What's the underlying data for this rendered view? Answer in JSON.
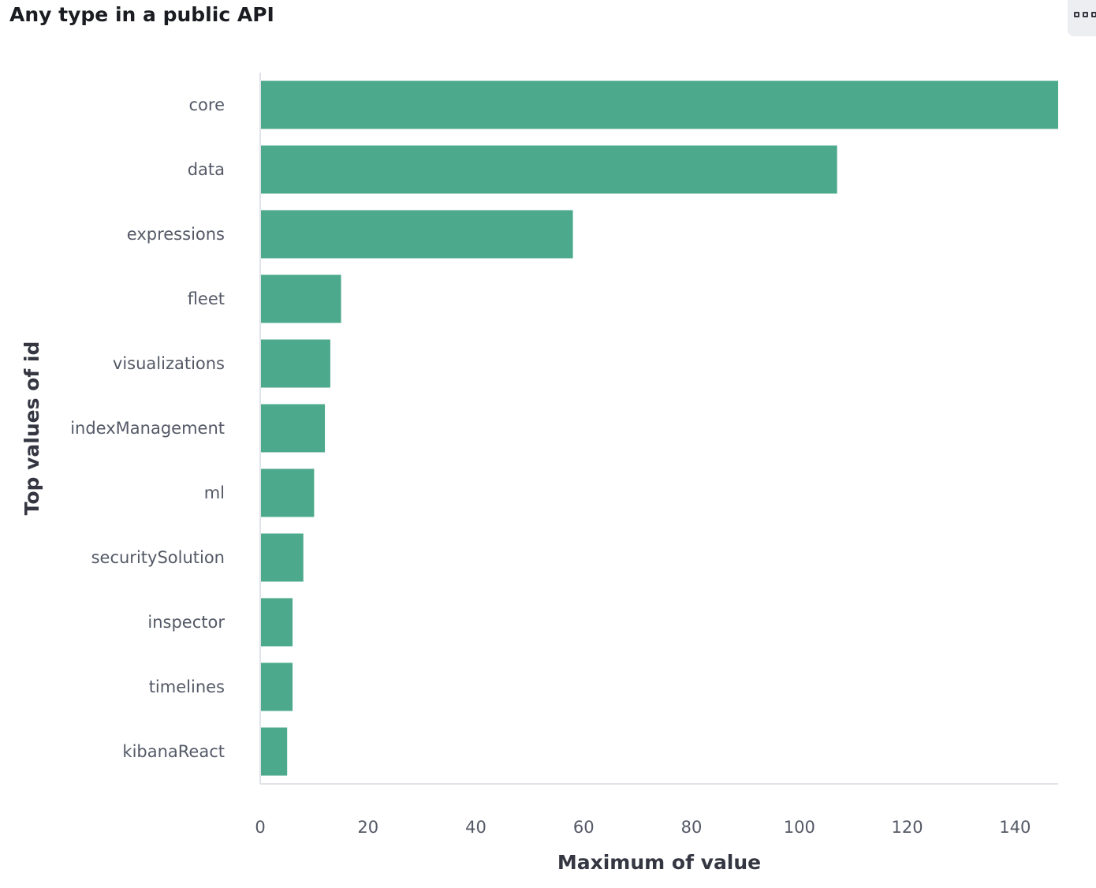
{
  "panel": {
    "title": "Any type in a public API",
    "menu_icon": "panel-options-icon"
  },
  "colors": {
    "bar": "#4ca98c",
    "axis": "#e0e3e8"
  },
  "chart_data": {
    "type": "bar",
    "orientation": "horizontal",
    "title": "Any type in a public API",
    "xlabel": "Maximum of value",
    "ylabel": "Top values of id",
    "categories": [
      "core",
      "data",
      "expressions",
      "fleet",
      "visualizations",
      "indexManagement",
      "ml",
      "securitySolution",
      "inspector",
      "timelines",
      "kibanaReact"
    ],
    "values": [
      148,
      107,
      58,
      15,
      13,
      12,
      10,
      8,
      6,
      6,
      5
    ],
    "xlim": [
      0,
      148
    ],
    "xticks": [
      0,
      20,
      40,
      60,
      80,
      100,
      120,
      140
    ],
    "grid": false,
    "legend": "none"
  }
}
